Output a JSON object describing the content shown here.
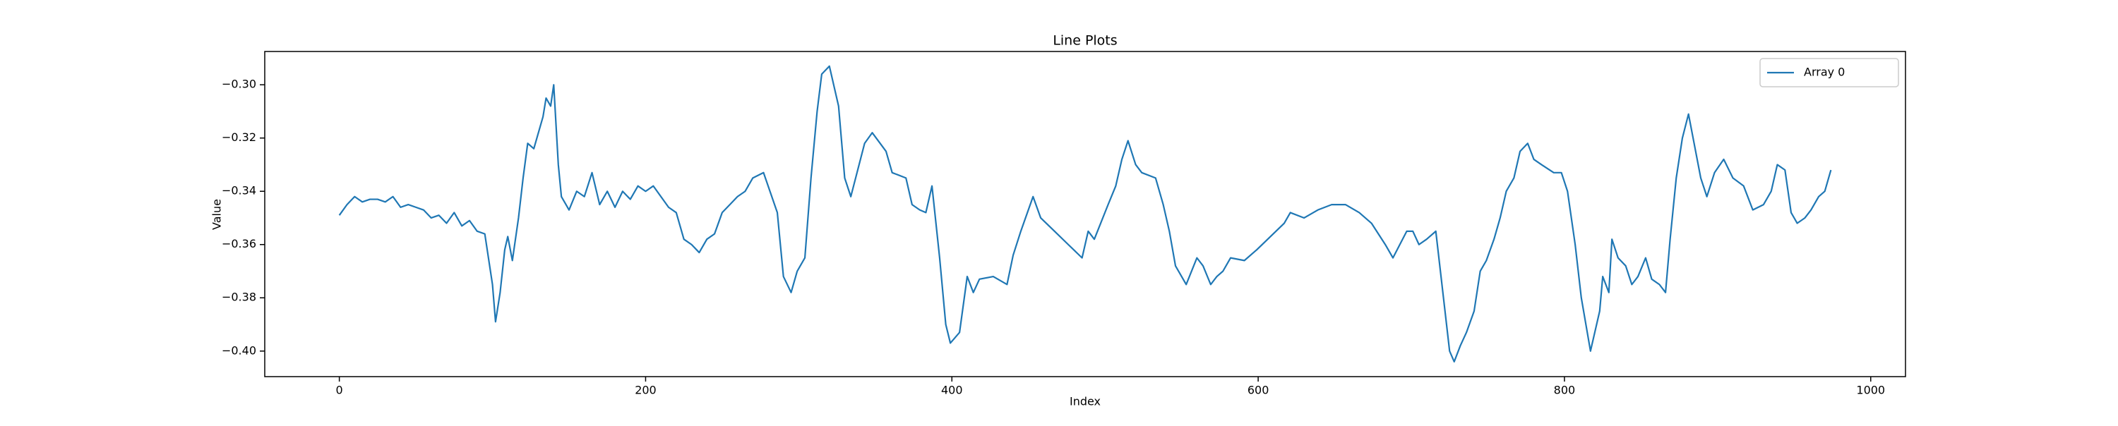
{
  "chart_data": {
    "type": "line",
    "title": "Line Plots",
    "xlabel": "Index",
    "ylabel": "Value",
    "x": [
      0,
      5,
      10,
      15,
      20,
      25,
      30,
      35,
      40,
      45,
      50,
      55,
      60,
      65,
      70,
      75,
      80,
      85,
      90,
      95,
      100,
      102,
      105,
      108,
      110,
      113,
      117,
      120,
      123,
      127,
      130,
      133,
      135,
      138,
      140,
      143,
      145,
      148,
      150,
      155,
      160,
      165,
      170,
      175,
      180,
      185,
      190,
      195,
      200,
      205,
      210,
      215,
      220,
      225,
      230,
      235,
      240,
      245,
      250,
      255,
      260,
      265,
      270,
      277,
      286,
      290,
      295,
      299,
      304,
      308,
      312,
      315,
      320,
      326,
      330,
      334,
      343,
      348,
      357,
      361,
      370,
      374,
      379,
      383,
      387,
      392,
      396,
      399,
      405,
      410,
      414,
      418,
      427,
      436,
      440,
      445,
      453,
      458,
      467,
      476,
      485,
      489,
      493,
      502,
      507,
      511,
      515,
      520,
      524,
      533,
      538,
      542,
      546,
      553,
      560,
      564,
      569,
      573,
      577,
      582,
      591,
      599,
      608,
      617,
      621,
      630,
      639,
      648,
      657,
      666,
      674,
      683,
      688,
      697,
      701,
      705,
      710,
      716,
      721,
      725,
      728,
      732,
      736,
      741,
      745,
      749,
      754,
      758,
      762,
      767,
      771,
      776,
      780,
      785,
      793,
      798,
      802,
      807,
      811,
      817,
      823,
      825,
      829,
      831,
      835,
      840,
      844,
      848,
      853,
      857,
      862,
      866,
      869,
      873,
      877,
      881,
      884,
      889,
      893,
      898,
      904,
      910,
      917,
      923,
      930,
      935,
      939,
      944,
      948,
      952,
      957,
      961,
      966,
      970,
      974
    ],
    "series": [
      {
        "name": "Array 0",
        "color": "#1f77b4",
        "values": [
          -0.349,
          -0.345,
          -0.342,
          -0.344,
          -0.343,
          -0.343,
          -0.344,
          -0.342,
          -0.346,
          -0.345,
          -0.346,
          -0.347,
          -0.35,
          -0.349,
          -0.352,
          -0.348,
          -0.353,
          -0.351,
          -0.355,
          -0.356,
          -0.375,
          -0.389,
          -0.378,
          -0.362,
          -0.357,
          -0.366,
          -0.35,
          -0.335,
          -0.322,
          -0.324,
          -0.318,
          -0.312,
          -0.305,
          -0.308,
          -0.3,
          -0.33,
          -0.342,
          -0.345,
          -0.347,
          -0.34,
          -0.342,
          -0.333,
          -0.345,
          -0.34,
          -0.346,
          -0.34,
          -0.343,
          -0.338,
          -0.34,
          -0.338,
          -0.342,
          -0.346,
          -0.348,
          -0.358,
          -0.36,
          -0.363,
          -0.358,
          -0.356,
          -0.348,
          -0.345,
          -0.342,
          -0.34,
          -0.335,
          -0.333,
          -0.348,
          -0.372,
          -0.378,
          -0.37,
          -0.365,
          -0.335,
          -0.31,
          -0.296,
          -0.293,
          -0.308,
          -0.335,
          -0.342,
          -0.322,
          -0.318,
          -0.325,
          -0.333,
          -0.335,
          -0.345,
          -0.347,
          -0.348,
          -0.338,
          -0.365,
          -0.39,
          -0.397,
          -0.393,
          -0.372,
          -0.378,
          -0.373,
          -0.372,
          -0.375,
          -0.364,
          -0.355,
          -0.342,
          -0.35,
          -0.355,
          -0.36,
          -0.365,
          -0.355,
          -0.358,
          -0.345,
          -0.338,
          -0.328,
          -0.321,
          -0.33,
          -0.333,
          -0.335,
          -0.345,
          -0.355,
          -0.368,
          -0.375,
          -0.365,
          -0.368,
          -0.375,
          -0.372,
          -0.37,
          -0.365,
          -0.366,
          -0.362,
          -0.357,
          -0.352,
          -0.348,
          -0.35,
          -0.347,
          -0.345,
          -0.345,
          -0.348,
          -0.352,
          -0.36,
          -0.365,
          -0.355,
          -0.355,
          -0.36,
          -0.358,
          -0.355,
          -0.38,
          -0.4,
          -0.404,
          -0.398,
          -0.393,
          -0.385,
          -0.37,
          -0.366,
          -0.358,
          -0.35,
          -0.34,
          -0.335,
          -0.325,
          -0.322,
          -0.328,
          -0.33,
          -0.333,
          -0.333,
          -0.34,
          -0.36,
          -0.38,
          -0.4,
          -0.385,
          -0.372,
          -0.378,
          -0.358,
          -0.365,
          -0.368,
          -0.375,
          -0.372,
          -0.365,
          -0.373,
          -0.375,
          -0.378,
          -0.358,
          -0.335,
          -0.32,
          -0.311,
          -0.32,
          -0.335,
          -0.342,
          -0.333,
          -0.328,
          -0.335,
          -0.338,
          -0.347,
          -0.345,
          -0.34,
          -0.33,
          -0.332,
          -0.348,
          -0.352,
          -0.35,
          -0.347,
          -0.342,
          -0.34,
          -0.332
        ]
      }
    ],
    "xlim": [
      -48.7,
      1022.7
    ],
    "ylim": [
      -0.4096,
      -0.2875
    ],
    "xticks": [
      0,
      200,
      400,
      600,
      800,
      1000
    ],
    "yticks": [
      {
        "value": -0.4,
        "label": "−0.40"
      },
      {
        "value": -0.38,
        "label": "−0.38"
      },
      {
        "value": -0.36,
        "label": "−0.36"
      },
      {
        "value": -0.34,
        "label": "−0.34"
      },
      {
        "value": -0.32,
        "label": "−0.32"
      },
      {
        "value": -0.3,
        "label": "−0.30"
      }
    ],
    "grid": false,
    "legend": "upper right"
  }
}
